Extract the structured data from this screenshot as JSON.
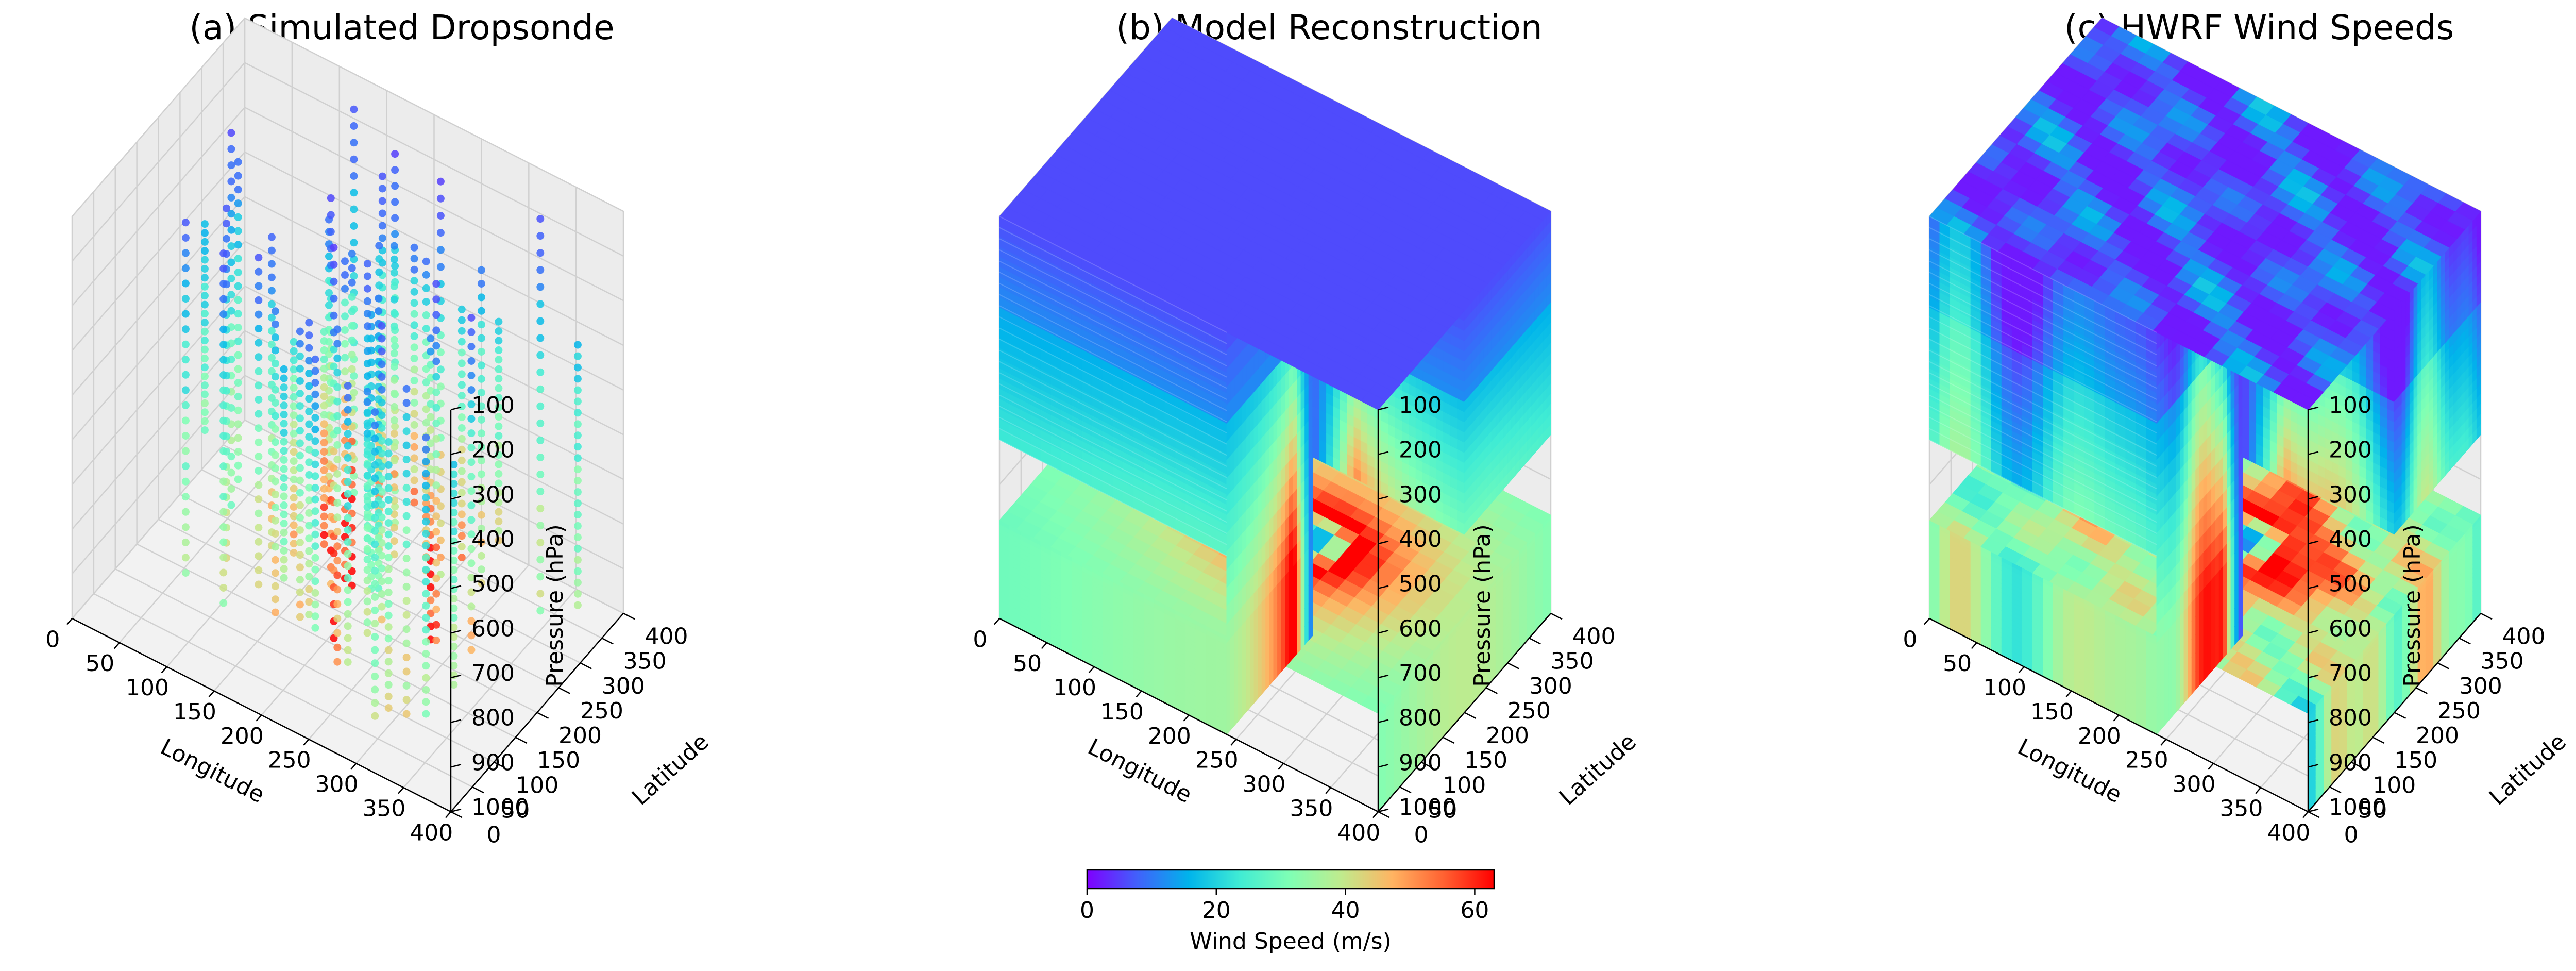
{
  "chart_data": [
    {
      "type": "scatter3d",
      "title": "(a) Simulated Dropsonde",
      "xlabel": "Longitude",
      "ylabel": "Latitude",
      "zlabel": "Pressure (hPa)",
      "xlim": [
        0,
        400
      ],
      "ylim": [
        0,
        400
      ],
      "zlim": [
        100,
        1000
      ],
      "z_inverted": true,
      "xticks": [
        "0",
        "50",
        "100",
        "150",
        "200",
        "250",
        "300",
        "350",
        "400"
      ],
      "yticks": [
        "0",
        "50",
        "100",
        "150",
        "200",
        "250",
        "300",
        "350",
        "400"
      ],
      "zticks": [
        "100",
        "200",
        "300",
        "400",
        "500",
        "600",
        "700",
        "800",
        "900",
        "1000"
      ],
      "grid": true,
      "description_data": {
        "profiles": 48,
        "levels_per_profile": 24,
        "wind_speed_range": [
          5,
          62
        ]
      }
    },
    {
      "type": "volume3d",
      "title": "(b) Model Reconstruction",
      "xlabel": "Longitude",
      "ylabel": "Latitude",
      "zlabel": "Pressure (hPa)",
      "xlim": [
        0,
        400
      ],
      "ylim": [
        0,
        400
      ],
      "zlim": [
        100,
        1000
      ],
      "z_inverted": true,
      "xticks": [
        "0",
        "50",
        "100",
        "150",
        "200",
        "250",
        "300",
        "350",
        "400"
      ],
      "yticks": [
        "0",
        "50",
        "100",
        "150",
        "200",
        "250",
        "300",
        "350",
        "400"
      ],
      "zticks": [
        "100",
        "200",
        "300",
        "400",
        "500",
        "600",
        "700",
        "800",
        "900",
        "1000"
      ],
      "grid": true
    },
    {
      "type": "volume3d",
      "title": "(c) HWRF Wind Speeds",
      "xlabel": "Longitude",
      "ylabel": "Latitude",
      "zlabel": "Pressure (hPa)",
      "xlim": [
        0,
        400
      ],
      "ylim": [
        0,
        400
      ],
      "zlim": [
        100,
        1000
      ],
      "z_inverted": true,
      "xticks": [
        "0",
        "50",
        "100",
        "150",
        "200",
        "250",
        "300",
        "350",
        "400"
      ],
      "yticks": [
        "0",
        "50",
        "100",
        "150",
        "200",
        "250",
        "300",
        "350",
        "400"
      ],
      "zticks": [
        "100",
        "200",
        "300",
        "400",
        "500",
        "600",
        "700",
        "800",
        "900",
        "1000"
      ],
      "grid": true
    }
  ],
  "colorbar": {
    "label": "Wind Speed (m/s)",
    "min": 0,
    "max": 63,
    "ticks": [
      {
        "value": 0,
        "label": "0"
      },
      {
        "value": 20,
        "label": "20"
      },
      {
        "value": 40,
        "label": "40"
      },
      {
        "value": 60,
        "label": "60"
      }
    ],
    "colormap": "rainbow",
    "colors": [
      "#7f00ff",
      "#4062fb",
      "#00b4eb",
      "#40ecd4",
      "#80ffb4",
      "#c0eb8d",
      "#ffb462",
      "#ff6232",
      "#ff0000"
    ]
  }
}
